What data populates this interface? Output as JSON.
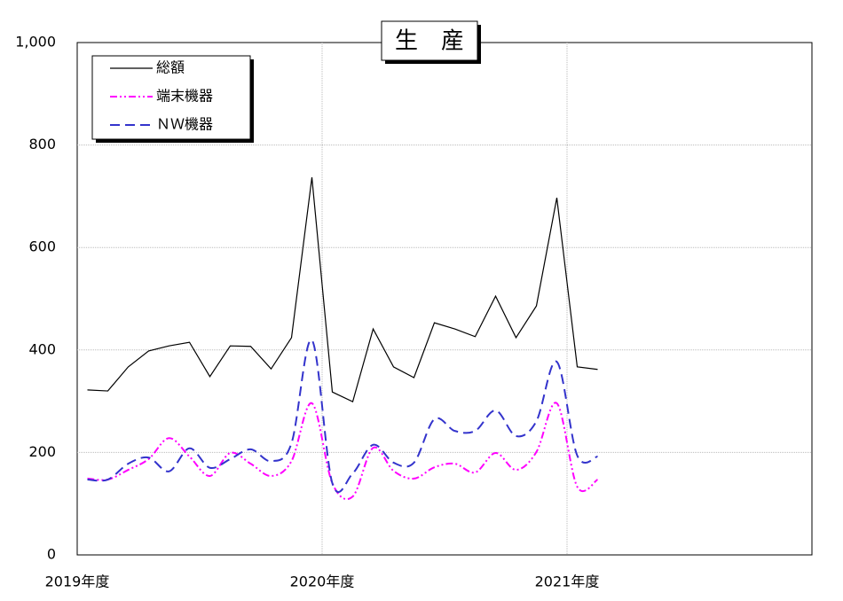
{
  "chart_data": {
    "type": "line",
    "title": "生　産",
    "categories": [
      "2019年度",
      null,
      null,
      null,
      null,
      null,
      null,
      null,
      null,
      null,
      null,
      null,
      "2020年度",
      null,
      null,
      null,
      null,
      null,
      null,
      null,
      null,
      null,
      null,
      null,
      "2021年度",
      null,
      null,
      null,
      null,
      null,
      null,
      null,
      null,
      null,
      null,
      null
    ],
    "series": [
      {
        "name": "総額",
        "color": "#000000",
        "dash": "solid",
        "values": [
          322,
          320,
          367,
          398,
          408,
          415,
          348,
          408,
          407,
          363,
          424,
          737,
          318,
          299,
          441,
          367,
          346,
          453,
          441,
          426,
          505,
          424,
          486,
          697,
          367,
          362,
          null,
          null,
          null,
          null,
          null,
          null,
          null,
          null,
          null,
          null
        ]
      },
      {
        "name": "端末機器",
        "color": "#ff00ff",
        "dash": "dashdotdot",
        "smooth": true,
        "values": [
          149,
          147,
          166,
          187,
          228,
          192,
          154,
          199,
          178,
          154,
          183,
          296,
          140,
          114,
          209,
          164,
          149,
          171,
          178,
          161,
          199,
          166,
          201,
          296,
          133,
          147,
          null,
          null,
          null,
          null,
          null,
          null,
          null,
          null,
          null,
          null
        ]
      },
      {
        "name": "ＮＷ機器",
        "color": "#3333cc",
        "dash": "dashed",
        "smooth": true,
        "values": [
          147,
          147,
          178,
          190,
          163,
          208,
          170,
          187,
          206,
          183,
          218,
          419,
          140,
          159,
          215,
          180,
          180,
          265,
          242,
          242,
          282,
          232,
          261,
          377,
          194,
          192,
          null,
          null,
          null,
          null,
          null,
          null,
          null,
          null,
          null,
          null
        ]
      }
    ],
    "ylim": [
      0,
      1000
    ],
    "yticks": [
      0,
      200,
      400,
      600,
      800,
      {
        "value": 1000,
        "label": "1,000"
      }
    ],
    "grid": true,
    "legend": "upper-left"
  }
}
